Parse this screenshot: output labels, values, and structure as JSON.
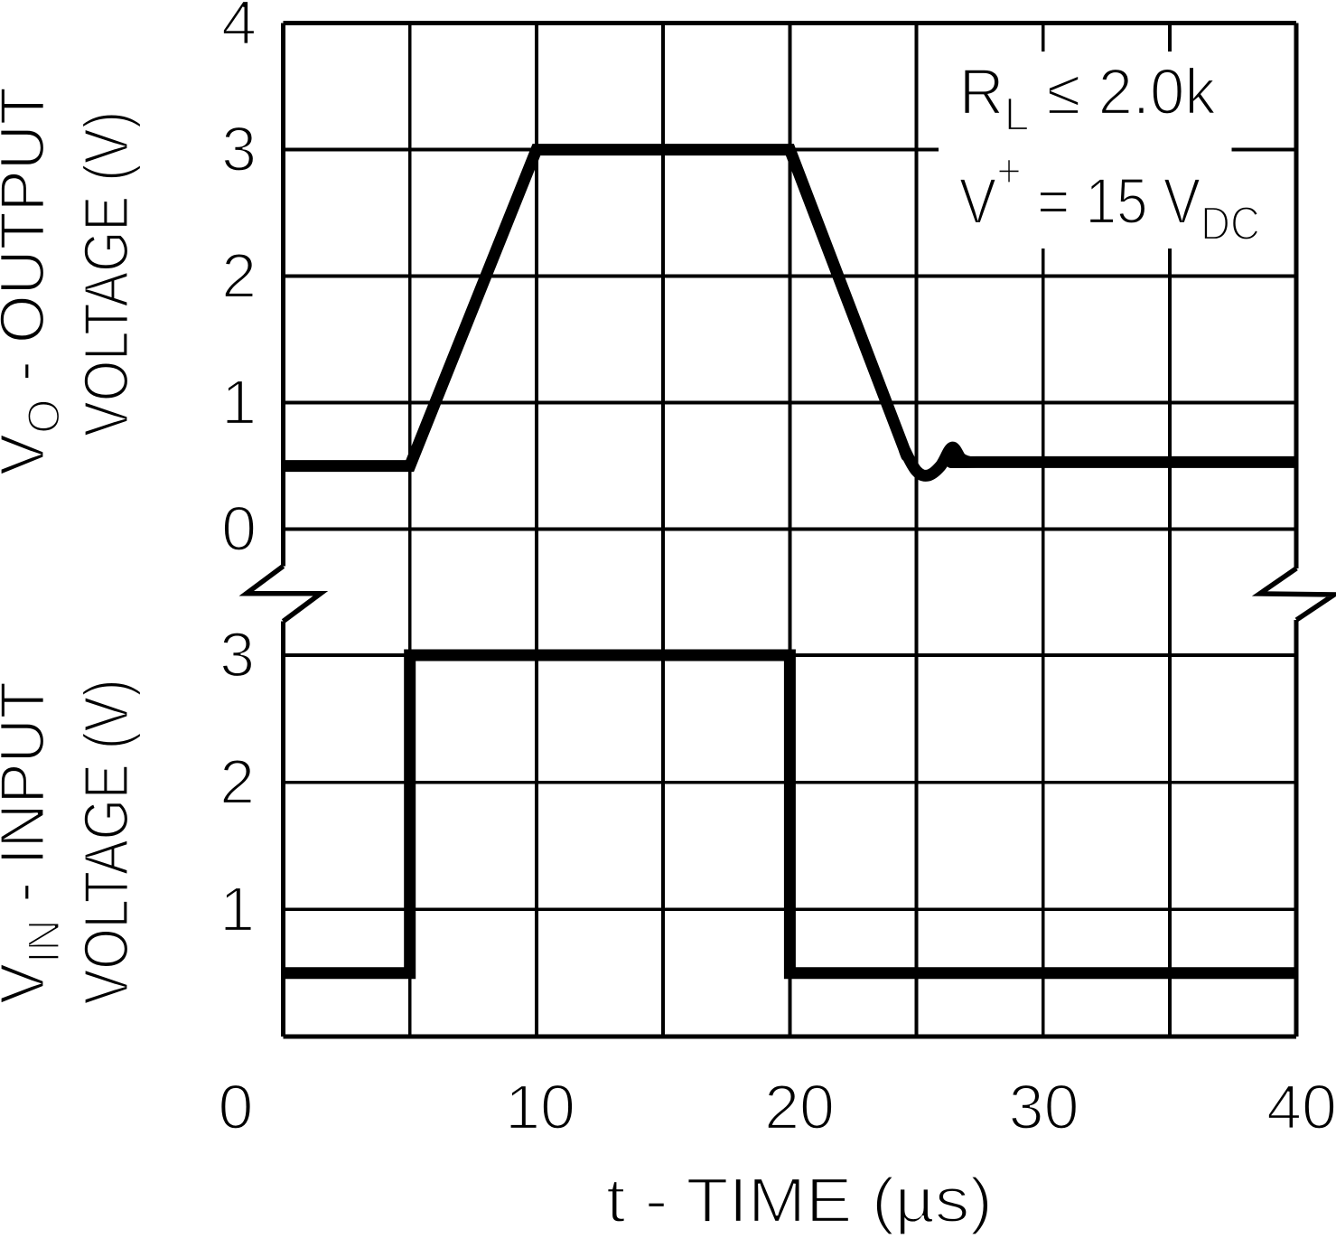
{
  "figure": {
    "description": "Voltage follower pulse response graph",
    "background_color": "#ffffff",
    "ink_color": "#000000"
  },
  "chart_data": {
    "type": "line",
    "title": "",
    "xlabel": "t - TIME (µs)",
    "x_axis": {
      "min": 0,
      "max": 40,
      "grid_step": 5,
      "tick_values": [
        0,
        10,
        20,
        30,
        40
      ],
      "tick_labels": [
        "0",
        "10",
        "20",
        "30",
        "40"
      ]
    },
    "grid": "on",
    "axis_break_between_panels": true,
    "panels": [
      {
        "id": "output",
        "ylabel_lines": [
          [
            {
              "t": "V"
            },
            {
              "t": "O",
              "s": "sub"
            },
            {
              "t": " - OUTPUT"
            }
          ],
          [
            {
              "t": "VOLTAGE (V)"
            }
          ]
        ],
        "y_axis": {
          "min": 0,
          "max": 4,
          "grid_step": 1,
          "tick_values": [
            4,
            3,
            2,
            1,
            0
          ],
          "tick_labels": [
            "4",
            "3",
            "2",
            "1",
            "0"
          ]
        },
        "series": [
          {
            "name": "output-voltage",
            "points": [
              [
                0,
                0.5
              ],
              [
                5,
                0.5
              ],
              [
                10,
                3.0
              ],
              [
                20,
                3.0
              ],
              [
                24.2,
                0.8
              ],
              [
                24.55,
                0.62,
                1
              ],
              [
                25.0,
                0.46,
                1
              ],
              [
                25.45,
                0.425,
                1
              ],
              [
                25.95,
                0.5,
                1
              ],
              [
                26.4,
                0.645,
                1
              ],
              [
                26.75,
                0.56,
                1
              ],
              [
                27.05,
                0.532,
                1
              ],
              [
                27.4,
                0.53
              ],
              [
                40,
                0.53
              ]
            ]
          }
        ]
      },
      {
        "id": "input",
        "ylabel_lines": [
          [
            {
              "t": "V"
            },
            {
              "t": "IN",
              "s": "sub"
            },
            {
              "t": " - INPUT"
            }
          ],
          [
            {
              "t": "VOLTAGE (V)"
            }
          ]
        ],
        "y_axis": {
          "min": 0,
          "max": 3,
          "grid_step": 1,
          "tick_values": [
            3,
            2,
            1
          ],
          "tick_labels": [
            "3",
            "2",
            "1"
          ]
        },
        "series": [
          {
            "name": "input-voltage",
            "points": [
              [
                0,
                0.5
              ],
              [
                5,
                0.5
              ],
              [
                5,
                3.0
              ],
              [
                20,
                3.0
              ],
              [
                20,
                0.5
              ],
              [
                40,
                0.5
              ]
            ]
          }
        ]
      }
    ],
    "annotation": {
      "lines": [
        [
          {
            "t": "R"
          },
          {
            "t": "L",
            "s": "sub"
          },
          {
            "t": " ≤ 2.0k"
          }
        ],
        [
          {
            "t": "V"
          },
          {
            "t": "+",
            "s": "sup"
          },
          {
            "t": " = 15 V"
          },
          {
            "t": "DC",
            "s": "sub"
          }
        ]
      ]
    }
  }
}
